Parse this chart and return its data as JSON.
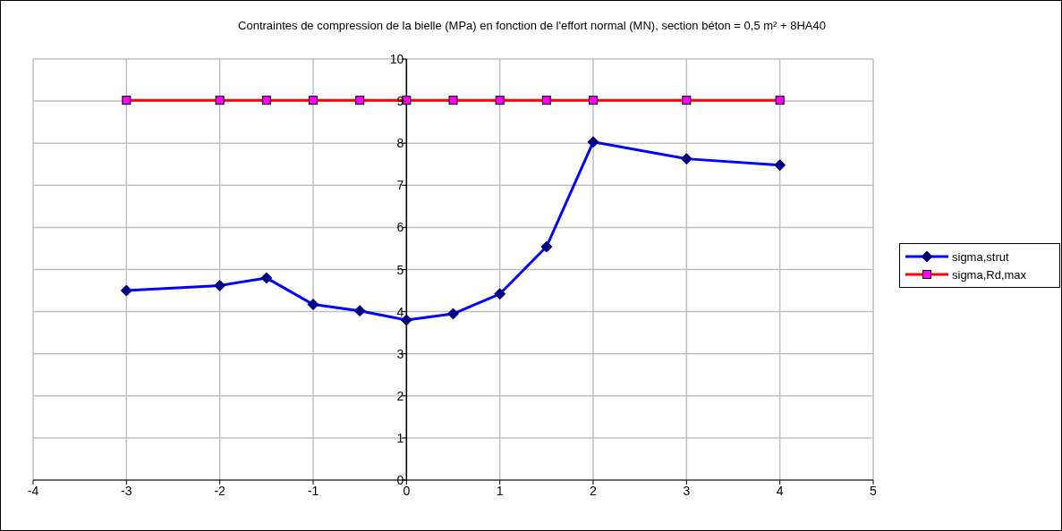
{
  "chart_data": {
    "type": "line",
    "title": "Contraintes de compression de la bielle (MPa) en fonction de l'effort normal (MN), section béton = 0,5 m² + 8HA40",
    "x": [
      -3,
      -2,
      -1.5,
      -1,
      -0.5,
      0,
      0.5,
      1,
      1.5,
      2,
      3,
      4
    ],
    "series": [
      {
        "name": "sigma,strut",
        "color": "#0000ff",
        "marker": "diamond",
        "values": [
          4.5,
          4.62,
          4.8,
          4.17,
          4.02,
          3.8,
          3.95,
          4.42,
          5.54,
          8.03,
          7.63,
          7.48
        ]
      },
      {
        "name": "sigma,Rd,max",
        "color": "#ff0000",
        "marker": "square",
        "values": [
          9.02,
          9.02,
          9.02,
          9.02,
          9.02,
          9.02,
          9.02,
          9.02,
          9.02,
          9.02,
          9.02,
          9.02
        ]
      }
    ],
    "xlim": [
      -4,
      5
    ],
    "xticks": [
      -4,
      -3,
      -2,
      -1,
      0,
      1,
      2,
      3,
      4,
      5
    ],
    "ylim": [
      0,
      10
    ],
    "yticks": [
      0,
      1,
      2,
      3,
      4,
      5,
      6,
      7,
      8,
      9,
      10
    ],
    "grid": true,
    "legend": "right",
    "line_style": "solid"
  }
}
